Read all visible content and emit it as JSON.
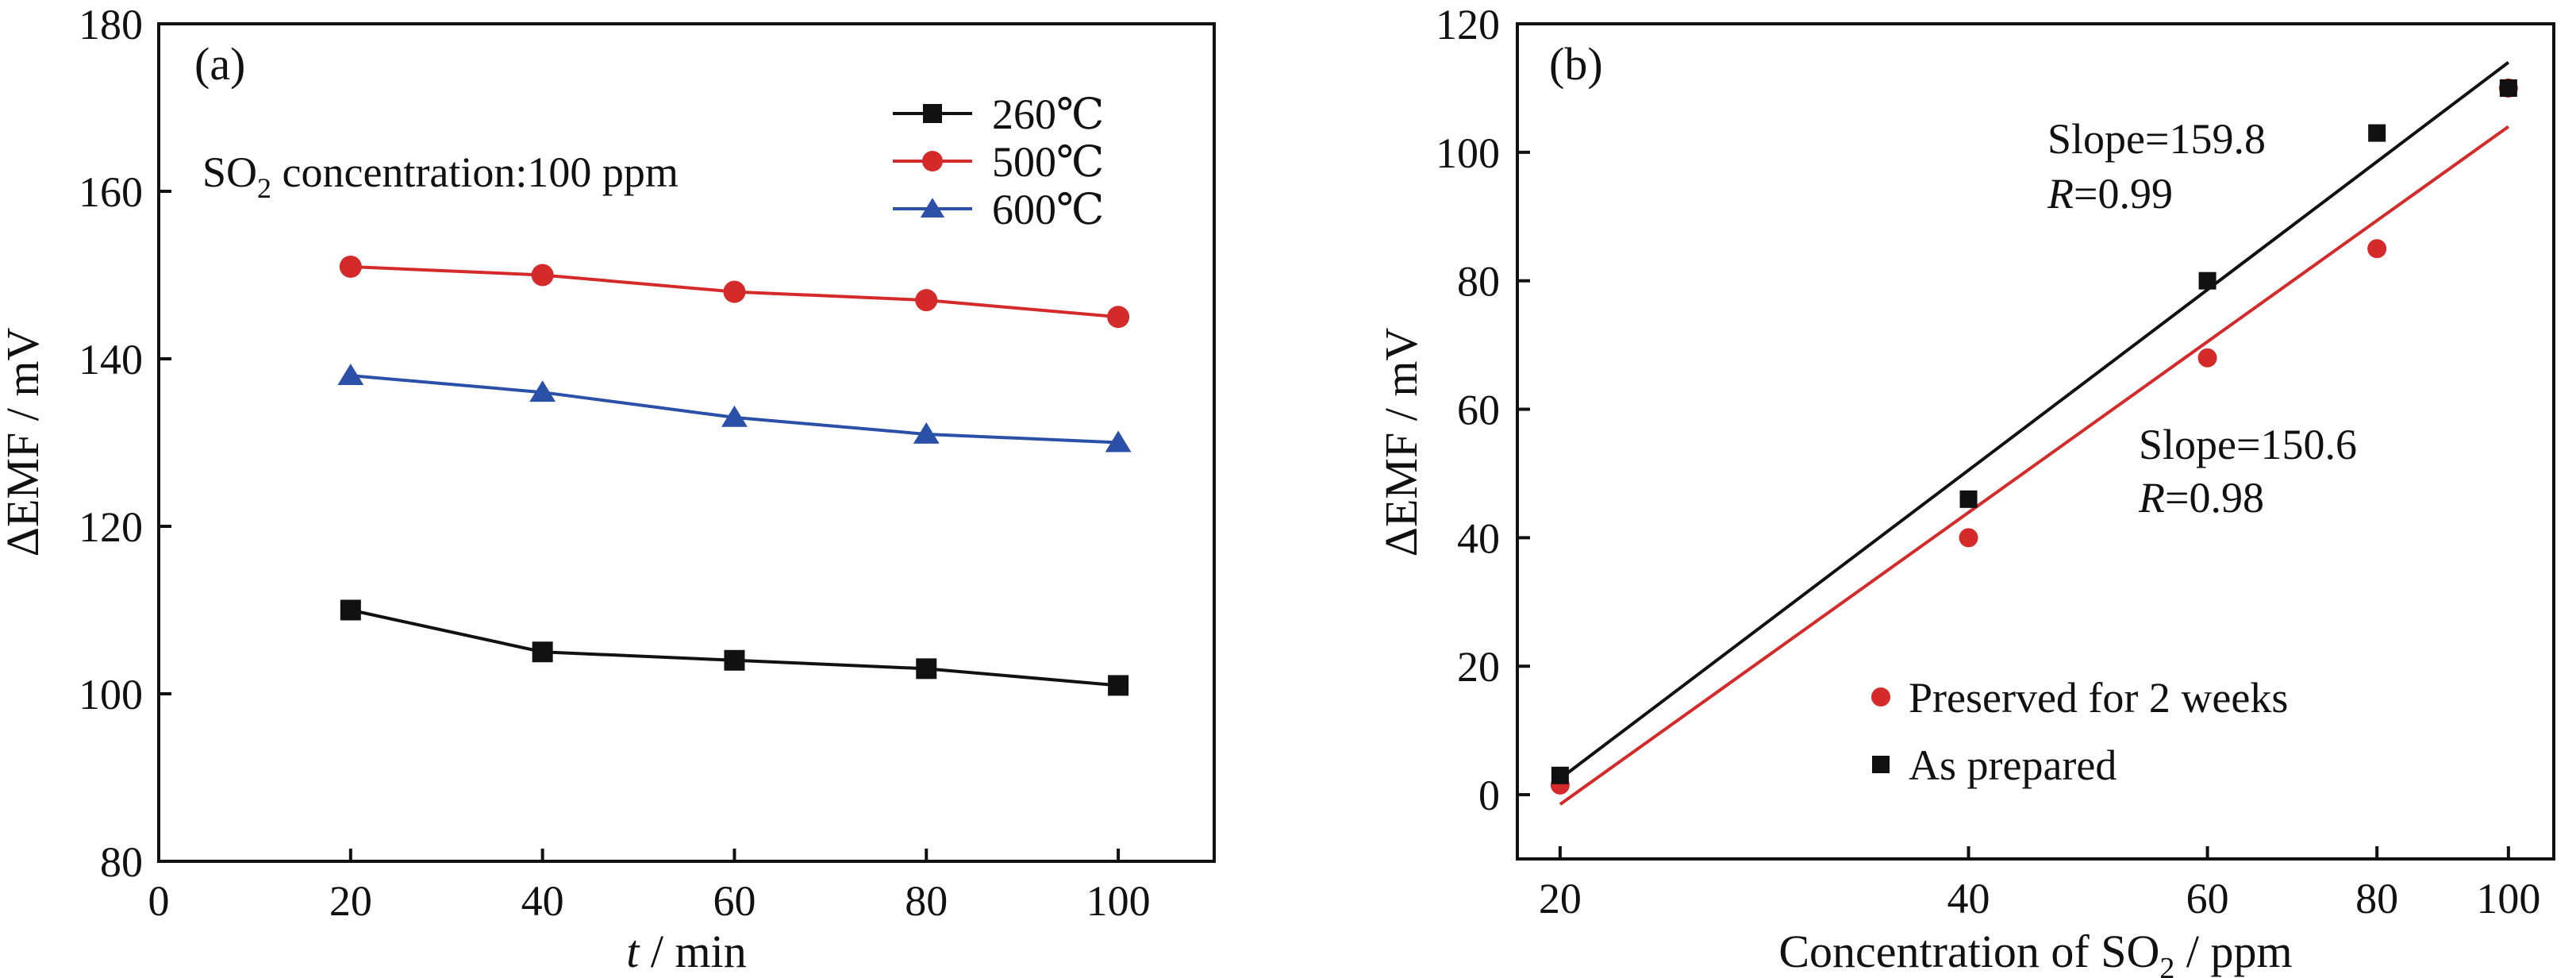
{
  "chart_data": [
    {
      "type": "line",
      "panel_label": "(a)",
      "annotation": {
        "prefix": "SO",
        "sub": "2",
        "suffix": " concentration:100 ppm"
      },
      "xlabel": {
        "italic": "t",
        "rest": " / min"
      },
      "ylabel": "ΔEMF / mV",
      "xlim": [
        0,
        110
      ],
      "ylim": [
        80,
        180
      ],
      "xticks": [
        0,
        20,
        40,
        60,
        80,
        100
      ],
      "yticks": [
        80,
        100,
        120,
        140,
        160,
        180
      ],
      "grid": false,
      "legend_position": "top-right",
      "x": [
        20,
        40,
        60,
        80,
        100
      ],
      "series": [
        {
          "name": "260℃",
          "color": "#111111",
          "marker": "square",
          "values": [
            110,
            105,
            104,
            103,
            101
          ]
        },
        {
          "name": "500℃",
          "color": "#d42a2a",
          "marker": "circle",
          "values": [
            151,
            150,
            148,
            147,
            145
          ]
        },
        {
          "name": "600℃",
          "color": "#2b50a8",
          "marker": "triangle",
          "values": [
            138,
            136,
            133,
            131,
            130
          ]
        }
      ]
    },
    {
      "type": "scatter",
      "panel_label": "(b)",
      "xlabel": {
        "prefix": "Concentration of SO",
        "sub": "2",
        "suffix": " / ppm"
      },
      "ylabel": "ΔEMF / mV",
      "x_scale": "log",
      "xlim": [
        18.6,
        108
      ],
      "ylim": [
        -10,
        120
      ],
      "xticks": [
        20,
        40,
        60,
        80,
        100
      ],
      "yticks": [
        0,
        20,
        40,
        60,
        80,
        100,
        120
      ],
      "grid": false,
      "legend_position": "bottom-right",
      "x": [
        20,
        40,
        60,
        80,
        100
      ],
      "series": [
        {
          "name": "Preserved for 2 weeks",
          "color": "#d42a2a",
          "marker": "circle",
          "values": [
            1.5,
            40,
            68,
            85,
            110
          ],
          "fit": {
            "x": [
              20,
              100
            ],
            "y": [
              -1.5,
              104
            ]
          },
          "slope_label": "Slope=150.6",
          "r_label": "=0.98"
        },
        {
          "name": "As prepared",
          "color": "#111111",
          "marker": "square",
          "values": [
            3,
            46,
            80,
            103,
            110
          ],
          "fit": {
            "x": [
              20,
              100
            ],
            "y": [
              2.5,
              114
            ]
          },
          "slope_label": "Slope=159.8",
          "r_label": "=0.99"
        }
      ]
    }
  ]
}
